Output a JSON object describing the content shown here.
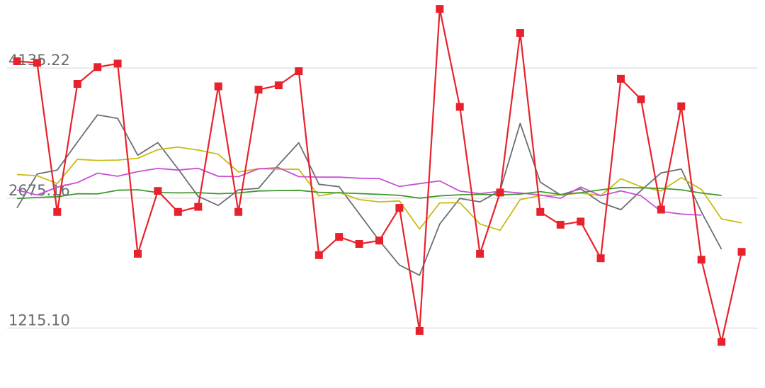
{
  "chart_data": {
    "type": "line",
    "y_ticks": [
      4135.22,
      2675.16,
      1215.1
    ],
    "y_tick_labels": [
      "4135.22",
      "2675.16",
      "1215.10"
    ],
    "ylim": [
      542,
      4900
    ],
    "grid": "horizontal",
    "legend": "none",
    "colors": {
      "price": "#e8222c",
      "ma_short": "#6b6f72",
      "ma_mid": "#c9bc14",
      "ma_long": "#c94fd6",
      "ma_longest": "#3f9a2f"
    },
    "series": [
      {
        "key": "price",
        "marker": "square",
        "values": [
          4212,
          4195,
          2520,
          3958,
          4146,
          4186,
          2050,
          2755,
          2520,
          2577,
          3930,
          2520,
          3893,
          3942,
          4101,
          2035,
          2239,
          2160,
          2198,
          2565,
          1183,
          4800,
          3700,
          2050,
          2738,
          4530,
          2520,
          2376,
          2412,
          2000,
          4015,
          3785,
          2546,
          3706,
          1983,
          1060,
          2071
        ]
      },
      {
        "key": "ma_short",
        "values": [
          2564,
          2945,
          2990,
          3305,
          3610,
          3570,
          3157,
          3298,
          3003,
          2695,
          2592,
          2768,
          2785,
          3050,
          3297,
          2830,
          2803,
          2500,
          2198,
          1923,
          1808,
          2384,
          2672,
          2633,
          2759,
          3515,
          2853,
          2710,
          2780,
          2625,
          2545,
          2760,
          2958,
          3001,
          2520,
          2100
        ]
      },
      {
        "key": "ma_mid",
        "values": [
          2940,
          2927,
          2839,
          3111,
          3098,
          3102,
          3123,
          3220,
          3248,
          3214,
          3168,
          2968,
          3005,
          3001,
          2998,
          2699,
          2740,
          2658,
          2633,
          2643,
          2327,
          2621,
          2623,
          2385,
          2313,
          2658,
          2704,
          2708,
          2732,
          2703,
          2893,
          2803,
          2756,
          2905,
          2773,
          2442,
          2397
        ]
      },
      {
        "key": "ma_long",
        "values": [
          2765,
          2710,
          2797,
          2850,
          2955,
          2921,
          2972,
          3008,
          2990,
          3010,
          2920,
          2916,
          3004,
          3016,
          2916,
          2911,
          2910,
          2898,
          2894,
          2805,
          2838,
          2868,
          2754,
          2725,
          2752,
          2732,
          2710,
          2673,
          2800,
          2701,
          2756,
          2702,
          2525,
          2495,
          2484
        ]
      },
      {
        "key": "ma_longest",
        "values": [
          2670,
          2682,
          2691,
          2724,
          2722,
          2763,
          2769,
          2737,
          2734,
          2736,
          2724,
          2733,
          2755,
          2760,
          2762,
          2740,
          2734,
          2726,
          2717,
          2706,
          2675,
          2700,
          2712,
          2717,
          2711,
          2720,
          2748,
          2716,
          2736,
          2768,
          2794,
          2790,
          2785,
          2768,
          2732,
          2705
        ]
      }
    ]
  }
}
